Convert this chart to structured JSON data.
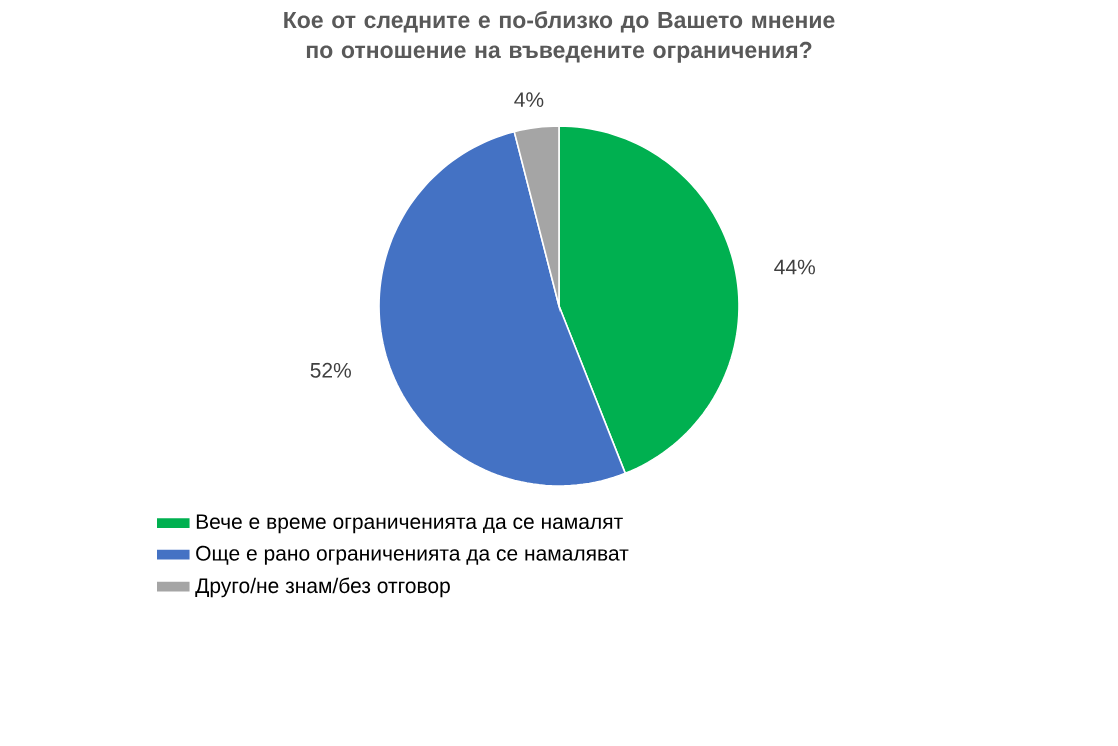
{
  "chart_data": {
    "type": "pie",
    "title": "Кое от следните е по-близко до Вашето мнение по отношение на въведените ограничения?",
    "categories": [
      "Вече е време ограниченията да се намалят",
      "Още е рано ограниченията да се намаляват",
      "Друго/не знам/без отговор"
    ],
    "values": [
      44,
      52,
      4
    ],
    "colors": [
      "#00b050",
      "#4472c4",
      "#a5a5a5"
    ],
    "value_labels": [
      "44%",
      "52%",
      "4%"
    ],
    "legend": "bottom"
  }
}
